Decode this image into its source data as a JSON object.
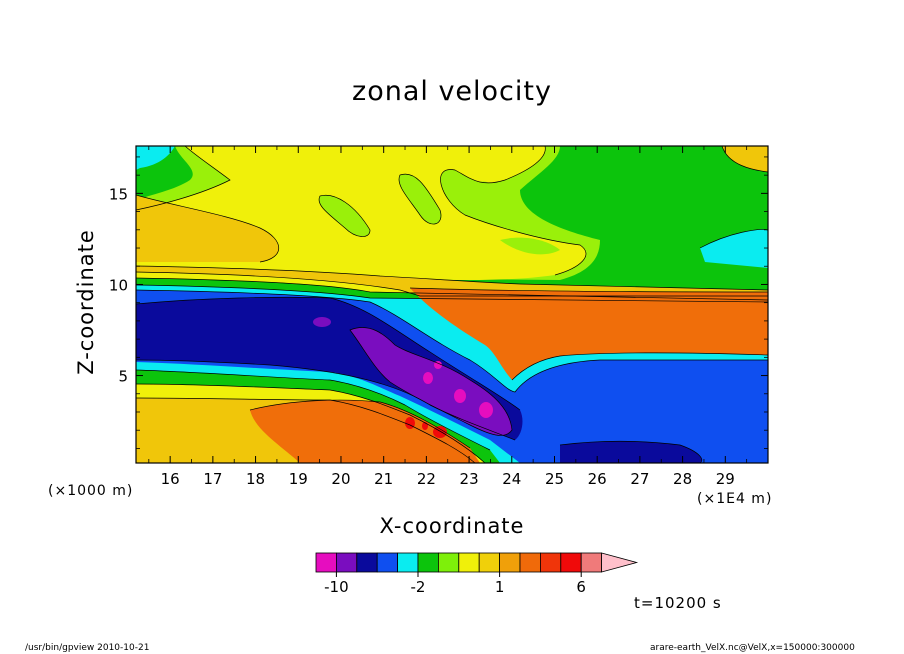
{
  "chart_data": {
    "type": "heatmap",
    "title": "zonal velocity",
    "xlabel": "X-coordinate",
    "ylabel": "Z-coordinate",
    "x_unit_label": "(×1E4 m)",
    "y_unit_label": "(×1000 m)",
    "x_ticks": [
      16,
      17,
      18,
      19,
      20,
      21,
      22,
      23,
      24,
      25,
      26,
      27,
      28,
      29
    ],
    "y_ticks": [
      5,
      10,
      15
    ],
    "xlim": [
      15.2,
      30.0
    ],
    "ylim": [
      0.2,
      17.6
    ],
    "colorbar": {
      "levels": [
        -12,
        -10,
        -8,
        -6,
        -4,
        -2,
        -1,
        0,
        0.5,
        1,
        2,
        3,
        4,
        6,
        8,
        10
      ],
      "tick_labels": [
        "-10",
        "-2",
        "1",
        "6"
      ],
      "tick_values": [
        -10,
        -2,
        1,
        6
      ],
      "colors": [
        "#e60dbf",
        "#7a0dbf",
        "#0a0a9c",
        "#0f4ff0",
        "#0aecf0",
        "#0cc40c",
        "#7ef00a",
        "#f0f00a",
        "#f0d00a",
        "#f0a00a",
        "#f06a0a",
        "#f0350a",
        "#f00a0a",
        "#f07a7a",
        "#ffc0cb"
      ]
    }
  },
  "annotations": {
    "time": "t=10200 s",
    "footer_left": "/usr/bin/gpview   2010-10-21",
    "footer_right": "arare-earth_VelX.nc@VelX,x=150000:300000"
  },
  "colors": {
    "cyan": "#0aecf0",
    "green": "#0cc40c",
    "yellow_green": "#9af00a",
    "yellow": "#f0f00a",
    "gold": "#f0c60a",
    "orange": "#f06e0a",
    "red": "#f00a0a",
    "blue": "#0f4ff0",
    "navy": "#0a0a9c",
    "purple": "#7a0dbf",
    "magenta": "#e60dbf"
  }
}
